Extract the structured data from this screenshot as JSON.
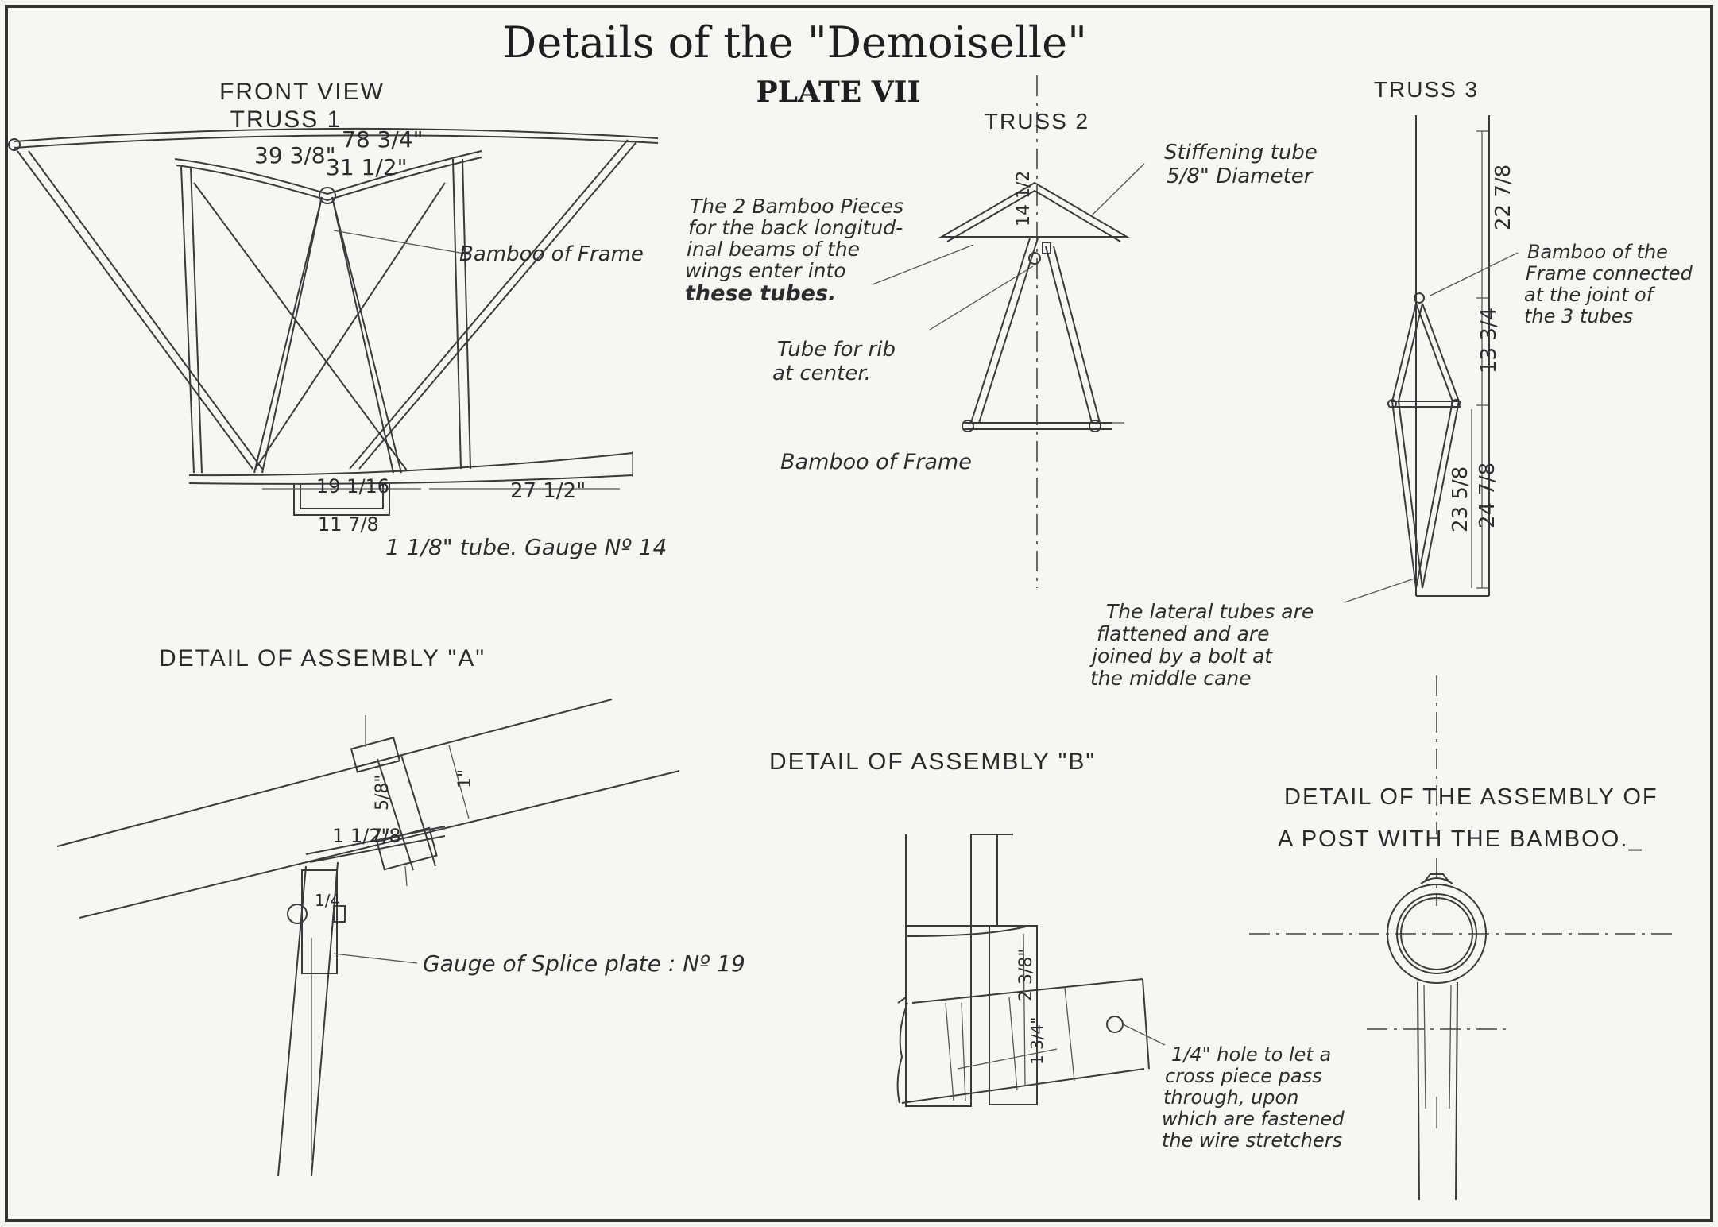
{
  "title": "Details of the \"Demoiselle\"",
  "plate": "PLATE VII",
  "front_view": {
    "heading_1": "FRONT VIEW",
    "heading_2": "TRUSS 1",
    "dim_top": "78 3/4\"",
    "dim_left": "39 3/8\"",
    "dim_inner": "31 1/2\"",
    "label_bamboo": "Bamboo of Frame",
    "dim_bottom_center": "19 1/16",
    "dim_bottom_right": "27 1/2\"",
    "dim_bottom_small": "11 7/8",
    "tube_note": "1 1/8\" tube. Gauge Nº 14"
  },
  "truss2": {
    "heading": "TRUSS 2",
    "stiffening_1": "Stiffening tube",
    "stiffening_2": "5/8\" Diameter",
    "bamboo_pieces": [
      "The 2 Bamboo Pieces",
      "for the back longitud-",
      "inal beams of the",
      "wings enter into",
      "these tubes."
    ],
    "dim_height": "14 1/2",
    "rib_note": [
      "Tube for rib",
      "at center."
    ],
    "bamboo_frame": "Bamboo of Frame"
  },
  "truss3": {
    "heading": "TRUSS 3",
    "dim_top": "22 7/8",
    "dim_mid": "13 3/4",
    "dim_lower_a": "23 5/8",
    "dim_lower_b": "24 7/8",
    "bamboo_note": [
      "Bamboo of the",
      "Frame connected",
      "at the joint of",
      "the 3 tubes"
    ],
    "lateral_note": [
      "The lateral tubes are",
      "flattened and are",
      "joined by a bolt at",
      "the middle cane"
    ]
  },
  "assembly_a": {
    "heading": "DETAIL OF ASSEMBLY \"A\"",
    "dim_1": "1\"",
    "dim_2": "5/8\"",
    "dim_3": "1 1/2\"",
    "dim_4": "7/8",
    "dim_5": "1/4",
    "splice_note": "Gauge of Splice plate : Nº 19"
  },
  "assembly_b": {
    "heading": "DETAIL OF ASSEMBLY \"B\"",
    "dim_1": "2 3/8\"",
    "dim_2": "1 3/4\"",
    "hole_note": [
      "1/4\" hole to let a",
      "cross piece pass",
      "through, upon",
      "which are fastened",
      "the wire stretchers"
    ]
  },
  "post_assembly": {
    "heading_1": "DETAIL OF THE ASSEMBLY OF",
    "heading_2": "A POST WITH THE BAMBOO._"
  }
}
